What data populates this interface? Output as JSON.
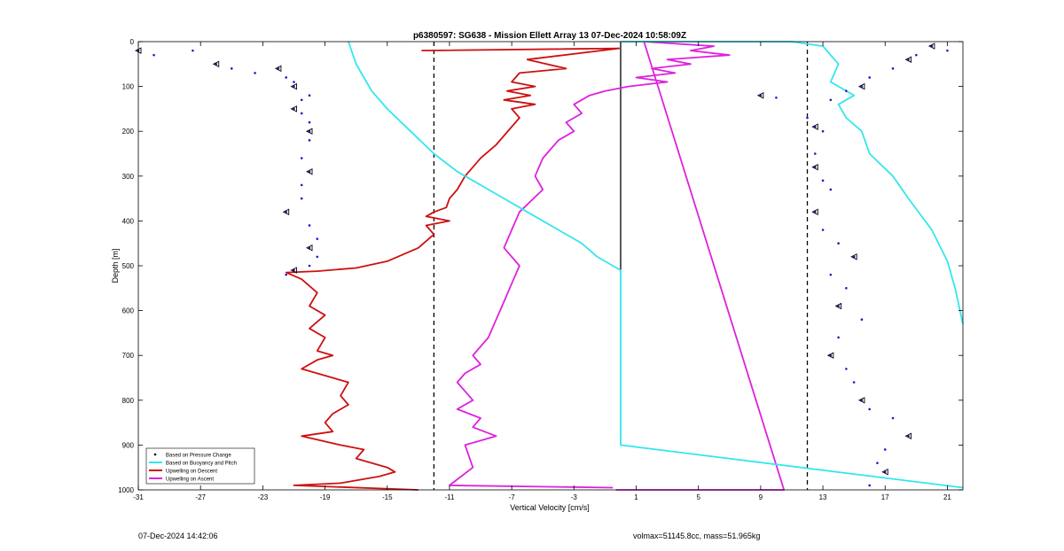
{
  "footer": {
    "timestamp": "07-Dec-2024 14:42:06",
    "summary": "volmax=51145.8cc, mass=51.965kg"
  },
  "chart_data": {
    "type": "line",
    "title": "p6380597: SG638 - Mission Ellett Array 13 07-Dec-2024 10:58:09Z",
    "xlabel": "Vertical Velocity [cm/s]",
    "ylabel": "Depth [m]",
    "xlim": [
      -31,
      22
    ],
    "ylim": [
      1000,
      0
    ],
    "y_reversed": true,
    "xticks": [
      -31,
      -27,
      -23,
      -19,
      -15,
      -11,
      -7,
      -3,
      1,
      5,
      9,
      13,
      17,
      21
    ],
    "yticks": [
      0,
      100,
      200,
      300,
      400,
      500,
      600,
      700,
      800,
      900,
      1000
    ],
    "grid": false,
    "legend_position": "bottom-left",
    "legend": [
      {
        "label": "Based on Pressure Change",
        "style": "dot",
        "color": "#000000"
      },
      {
        "label": "Based on Buoyancy and Pitch",
        "style": "line",
        "color": "#33e6ee"
      },
      {
        "label": "Upwelling on Descent",
        "style": "line",
        "color": "#cc1111"
      },
      {
        "label": "Upwelling on Ascent",
        "style": "line",
        "color": "#dd22dd"
      }
    ],
    "reference_lines": [
      {
        "x": 0,
        "style": "solid",
        "depth_range": [
          0,
          515
        ]
      },
      {
        "x": -12,
        "style": "dashed"
      },
      {
        "x": 12,
        "style": "dashed"
      }
    ],
    "series": [
      {
        "name": "Upwelling on Descent",
        "color": "#cc1111",
        "x": [
          -12.8,
          -0.1,
          -6.0,
          -3.5,
          -6.5,
          -7.0,
          -5.5,
          -7.3,
          -5.8,
          -7.5,
          -5.5,
          -7.0,
          -6.5,
          -7.0,
          -8.0,
          -9.0,
          -9.5,
          -10.0,
          -10.5,
          -11.0,
          -11.2,
          -12.0,
          -12.5,
          -11.0,
          -12.5,
          -12.0,
          -13.0,
          -15.0,
          -17.0,
          -19.5,
          -21.5,
          -20.5,
          -19.5,
          -20.0,
          -19.0,
          -20.0,
          -19.0,
          -19.5,
          -18.5,
          -19.5,
          -20.5,
          -18.5,
          -17.5,
          -18.0,
          -17.5,
          -18.5,
          -19.0,
          -18.5,
          -20.5,
          -18.0,
          -16.5,
          -17.0,
          -15.0,
          -14.5,
          -15.5,
          -18.0,
          -21.0,
          -13.0
        ],
        "y": [
          20,
          15,
          40,
          60,
          70,
          90,
          100,
          110,
          120,
          130,
          140,
          150,
          170,
          190,
          230,
          260,
          280,
          300,
          330,
          350,
          370,
          380,
          390,
          400,
          410,
          430,
          460,
          490,
          505,
          512,
          515,
          530,
          560,
          590,
          610,
          640,
          660,
          690,
          700,
          710,
          730,
          750,
          760,
          790,
          810,
          830,
          850,
          870,
          880,
          900,
          910,
          930,
          950,
          960,
          970,
          985,
          990,
          1000
        ]
      },
      {
        "name": "Upwelling on Ascent",
        "color": "#dd22dd",
        "x": [
          -0.3,
          10.5,
          1.5,
          6.0,
          4.5,
          7.0,
          3.0,
          4.5,
          2.0,
          3.5,
          1.0,
          3.0,
          0.5,
          -1.0,
          -2.0,
          -3.0,
          -2.5,
          -3.5,
          -3.0,
          -4.0,
          -5.0,
          -5.5,
          -5.0,
          -6.5,
          -7.0,
          -7.5,
          -6.5,
          -7.0,
          -7.5,
          -8.0,
          -8.5,
          -9.5,
          -9.0,
          -10.0,
          -10.5,
          -10.0,
          -9.5,
          -10.5,
          -9.0,
          -9.5,
          -8.0,
          -10.0,
          -9.5,
          -11.0,
          -0.5
        ],
        "y": [
          1000,
          1000,
          0,
          10,
          20,
          30,
          40,
          50,
          60,
          70,
          80,
          90,
          100,
          110,
          120,
          140,
          160,
          180,
          200,
          220,
          260,
          300,
          330,
          380,
          420,
          460,
          500,
          540,
          580,
          620,
          660,
          700,
          720,
          740,
          760,
          780,
          800,
          820,
          840,
          860,
          880,
          900,
          950,
          990,
          995
        ]
      },
      {
        "name": "Based on Buoyancy and Pitch",
        "color": "#33e6ee",
        "x": [
          -17.5,
          -17.0,
          -16.5,
          -16.0,
          -15.0,
          -13.5,
          -12.0,
          -10.5,
          -8.0,
          -6.0,
          -4.0,
          -2.5,
          -1.5,
          0.0,
          0.0,
          0.0,
          0.0,
          0.0,
          0.0,
          22.0
        ],
        "y": [
          0,
          50,
          80,
          110,
          150,
          200,
          250,
          290,
          340,
          380,
          420,
          450,
          480,
          510,
          515,
          600,
          700,
          800,
          900,
          995
        ]
      },
      {
        "name": "Based on Buoyancy and Pitch",
        "color": "#33e6ee",
        "x": [
          0.0,
          11.0,
          13.0,
          14.0,
          13.5,
          15.0,
          14.0,
          14.5,
          15.5,
          16.0,
          17.5,
          18.5,
          20.0,
          21.0,
          21.5,
          22.0
        ],
        "y": [
          0,
          0,
          10,
          50,
          90,
          120,
          140,
          170,
          200,
          250,
          300,
          350,
          420,
          490,
          550,
          630
        ]
      }
    ],
    "scatter_descent": {
      "color": "#1a1acc",
      "x": [
        -31.0,
        -30.0,
        -27.5,
        -26.0,
        -25.0,
        -23.5,
        -22.0,
        -21.5,
        -21.0,
        -21.0,
        -20.0,
        -20.5,
        -21.0,
        -20.5,
        -20.0,
        -20.0,
        -20.0,
        -20.5,
        -20.0,
        -20.5,
        -20.5,
        -21.5,
        -20.0,
        -19.5,
        -20.0,
        -19.5,
        -20.0,
        -21.0,
        -21.5
      ],
      "y": [
        20,
        30,
        20,
        50,
        60,
        70,
        60,
        80,
        90,
        100,
        120,
        130,
        150,
        160,
        180,
        200,
        220,
        260,
        290,
        320,
        350,
        380,
        410,
        440,
        460,
        480,
        500,
        510,
        520
      ]
    },
    "scatter_ascent": {
      "color": "#1a1acc",
      "x": [
        20.0,
        21.0,
        19.0,
        18.5,
        17.5,
        16.0,
        15.5,
        14.5,
        13.5,
        9.0,
        10.0,
        12.0,
        12.5,
        13.0,
        12.5,
        12.5,
        13.0,
        13.5,
        12.5,
        13.0,
        14.0,
        15.0,
        13.5,
        14.5,
        14.0,
        15.5,
        14.0,
        13.5,
        14.5,
        15.0,
        15.5,
        16.0,
        17.5,
        18.5,
        17.0,
        16.5,
        17.0,
        16.0
      ],
      "y": [
        10,
        20,
        30,
        40,
        60,
        80,
        100,
        110,
        130,
        120,
        125,
        170,
        190,
        200,
        250,
        280,
        310,
        330,
        380,
        420,
        450,
        480,
        520,
        550,
        590,
        620,
        660,
        700,
        730,
        760,
        800,
        820,
        840,
        880,
        910,
        940,
        960,
        990
      ]
    }
  }
}
